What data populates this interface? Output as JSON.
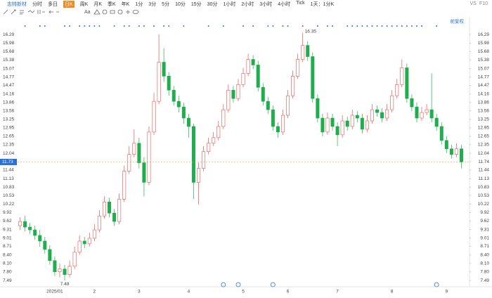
{
  "toolbar": {
    "stock": "志特新材",
    "periods": [
      "分时",
      "多日",
      "日K",
      "周K",
      "月K",
      "季K",
      "年K",
      "1分",
      "3分",
      "5分",
      "10分",
      "15分",
      "30分",
      "1小时",
      "2小时",
      "3小时",
      "4小时",
      "Tick",
      "1天：1分K"
    ],
    "active": 2,
    "font_tool": "Aa",
    "right": [
      "VS",
      "F10"
    ]
  },
  "chart_data": {
    "type": "candlestick",
    "adjust_label": "前复权",
    "current_price": 11.73,
    "categories": [
      null,
      null,
      null,
      null,
      null,
      null,
      null,
      "2025/01",
      null,
      null,
      null,
      null,
      null,
      null,
      null,
      "2",
      null,
      null,
      null,
      null,
      null,
      null,
      null,
      null,
      "3",
      null,
      null,
      null,
      null,
      null,
      null,
      null,
      null,
      null,
      "4",
      null,
      null,
      null,
      null,
      null,
      null,
      null,
      null,
      null,
      null,
      "5",
      null,
      null,
      null,
      null,
      null,
      null,
      null,
      null,
      "6",
      null,
      null,
      null,
      null,
      null,
      null,
      null,
      null,
      null,
      "7",
      null,
      null,
      null,
      null,
      null,
      null,
      null,
      null,
      null,
      null,
      "8",
      null,
      null,
      null,
      null,
      null,
      null,
      null,
      null,
      null,
      null,
      "9",
      null,
      null,
      null
    ],
    "open": [
      9.45,
      9.6,
      9.4,
      9.3,
      9.1,
      8.9,
      8.6,
      8.2,
      7.8,
      7.9,
      7.7,
      8.0,
      8.5,
      8.9,
      8.8,
      9.0,
      9.3,
      9.8,
      10.3,
      9.9,
      9.6,
      10.4,
      11.4,
      12.0,
      12.4,
      11.7,
      11.0,
      12.8,
      13.9,
      15.3,
      14.8,
      14.3,
      13.9,
      13.7,
      13.3,
      13.0,
      11.0,
      11.5,
      12.1,
      12.4,
      12.6,
      13.0,
      13.6,
      14.3,
      14.0,
      14.5,
      14.9,
      15.4,
      15.2,
      14.4,
      13.9,
      13.6,
      13.0,
      12.8,
      13.4,
      14.1,
      14.8,
      15.4,
      15.9,
      15.5,
      14.0,
      13.3,
      12.8,
      13.3,
      13.0,
      12.7,
      13.2,
      13.0,
      13.4,
      13.3,
      12.9,
      13.2,
      13.6,
      13.5,
      13.3,
      13.6,
      14.1,
      14.5,
      15.1,
      14.0,
      13.7,
      13.3,
      13.5,
      13.6,
      13.3,
      13.0,
      12.5,
      12.2,
      12.0,
      12.2
    ],
    "high": [
      9.75,
      9.8,
      9.55,
      9.45,
      9.3,
      9.05,
      8.75,
      8.35,
      8.1,
      8.05,
      8.2,
      8.7,
      9.1,
      9.05,
      9.2,
      9.5,
      10.0,
      10.5,
      10.45,
      10.05,
      10.6,
      11.6,
      12.3,
      12.9,
      12.6,
      11.9,
      13.0,
      14.2,
      16.3,
      15.8,
      14.95,
      14.45,
      14.1,
      13.85,
      13.45,
      13.1,
      11.7,
      12.3,
      12.6,
      12.8,
      13.2,
      13.8,
      14.5,
      14.45,
      14.7,
      15.1,
      15.6,
      15.55,
      15.35,
      14.55,
      14.05,
      13.75,
      13.15,
      13.6,
      14.3,
      15.0,
      15.6,
      16.35,
      16.05,
      15.65,
      14.15,
      13.45,
      13.5,
      13.45,
      13.15,
      13.4,
      13.35,
      13.6,
      13.55,
      13.45,
      13.4,
      13.8,
      13.75,
      13.65,
      13.8,
      14.3,
      14.7,
      15.4,
      15.25,
      14.15,
      13.85,
      13.7,
      13.8,
      14.9,
      13.45,
      13.15,
      12.65,
      12.35,
      12.4,
      12.35
    ],
    "low": [
      9.3,
      9.25,
      9.15,
      8.95,
      8.7,
      8.45,
      8.05,
      7.65,
      7.6,
      7.49,
      7.6,
      7.9,
      8.4,
      8.65,
      8.7,
      8.9,
      9.2,
      9.7,
      9.75,
      9.45,
      9.5,
      10.3,
      11.3,
      11.9,
      11.5,
      10.5,
      10.9,
      12.7,
      13.8,
      14.6,
      14.1,
      13.75,
      13.5,
      13.1,
      12.6,
      10.4,
      10.2,
      11.4,
      12.0,
      12.3,
      12.5,
      12.9,
      13.5,
      13.85,
      13.9,
      14.4,
      14.8,
      15.05,
      14.25,
      13.75,
      13.45,
      12.85,
      12.6,
      12.7,
      13.3,
      14.0,
      14.7,
      15.3,
      15.35,
      13.85,
      13.15,
      12.65,
      12.7,
      12.85,
      12.3,
      12.6,
      12.85,
      12.9,
      13.15,
      12.75,
      12.8,
      13.1,
      13.35,
      13.15,
      13.2,
      13.5,
      14.0,
      14.4,
      13.85,
      13.55,
      13.15,
      13.2,
      13.4,
      13.15,
      12.85,
      12.35,
      12.05,
      11.85,
      11.9,
      11.5
    ],
    "close": [
      9.6,
      9.4,
      9.3,
      9.1,
      8.9,
      8.6,
      8.2,
      7.8,
      7.9,
      7.7,
      8.0,
      8.5,
      8.9,
      8.8,
      9.0,
      9.3,
      9.8,
      10.3,
      9.9,
      9.6,
      10.4,
      11.4,
      12.0,
      12.4,
      11.7,
      11.0,
      12.8,
      13.9,
      15.3,
      14.8,
      14.3,
      13.9,
      13.7,
      13.3,
      13.0,
      11.0,
      11.5,
      12.1,
      12.4,
      12.6,
      13.0,
      13.6,
      14.3,
      14.0,
      14.5,
      14.9,
      15.4,
      15.2,
      14.4,
      13.9,
      13.6,
      13.0,
      12.8,
      13.4,
      14.1,
      14.8,
      15.4,
      15.9,
      15.5,
      14.0,
      13.3,
      12.8,
      13.3,
      13.0,
      12.7,
      13.2,
      13.0,
      13.4,
      13.3,
      12.9,
      13.2,
      13.6,
      13.5,
      13.3,
      13.6,
      14.1,
      14.5,
      15.1,
      14.0,
      13.7,
      13.3,
      13.5,
      13.6,
      13.3,
      13.0,
      12.5,
      12.2,
      12.0,
      12.2,
      11.73
    ],
    "up_color": "#e8534f",
    "down_color": "#1fad4e",
    "ylim": [
      7.34,
      16.62
    ],
    "yticks": [
      16.29,
      15.98,
      15.68,
      15.38,
      15.07,
      14.77,
      14.47,
      14.16,
      13.86,
      13.56,
      13.25,
      12.95,
      12.65,
      12.35,
      12.04,
      11.74,
      11.44,
      11.13,
      10.83,
      10.53,
      10.22,
      9.92,
      9.62,
      9.31,
      9.01,
      8.71,
      {
        "value": 8.4,
        "label": "8.40"
      },
      {
        "value": 8.1,
        "label": "8.10"
      },
      {
        "value": 7.8,
        "label": "7.80"
      },
      7.49
    ],
    "grid": false
  }
}
